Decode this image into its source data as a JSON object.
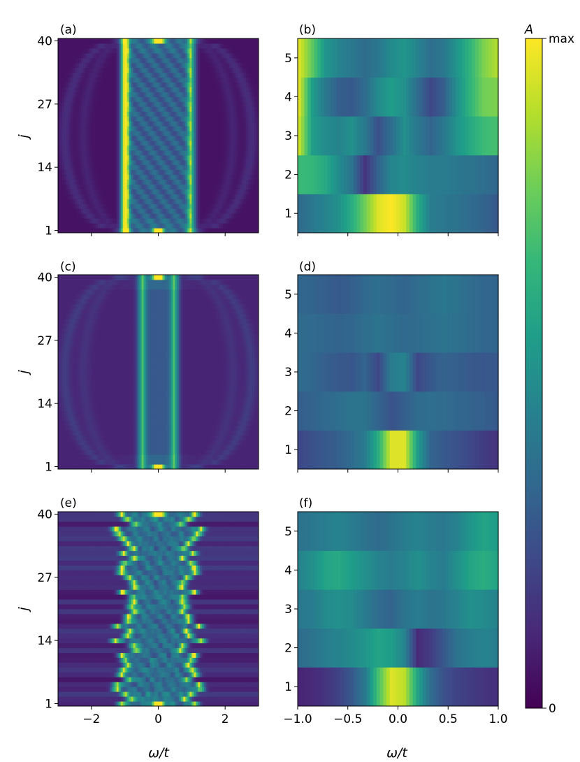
{
  "chart_data": [
    {
      "panel_label": "(a)",
      "type": "heatmap",
      "xlabel": "",
      "ylabel": "j",
      "xlim": [
        -3,
        3
      ],
      "ylim": [
        1,
        40
      ],
      "x_ticks": [
        -2,
        0,
        2
      ],
      "x_tick_labels_visible": false,
      "y_ticks": [
        1,
        14,
        27,
        40
      ],
      "y_tick_labels": [
        "1",
        "14",
        "27",
        "40"
      ],
      "colormap": "viridis",
      "rows": 40,
      "features": {
        "background": 0.05,
        "edge_ridge_x": [
          -1,
          1
        ],
        "center_peaks_at": [
          [
            0,
            1
          ],
          [
            0,
            40
          ]
        ],
        "left_ridge_intensity": 0.95,
        "right_ridge_intensity": 0.55,
        "interior_checker": 0.3,
        "arc_rings": true,
        "disorder": 0
      }
    },
    {
      "panel_label": "(b)",
      "type": "heatmap",
      "xlabel": "",
      "ylabel": "",
      "xlim": [
        -1,
        1
      ],
      "ylim": [
        0.5,
        5.5
      ],
      "x_ticks": [
        -1.0,
        -0.5,
        0.0,
        0.5,
        1.0
      ],
      "x_tick_labels_visible": false,
      "y_ticks": [
        1,
        2,
        3,
        4,
        5
      ],
      "y_tick_labels": [
        "1",
        "2",
        "3",
        "4",
        "5"
      ],
      "colormap": "viridis",
      "rows": [
        [
          0.35,
          0.4,
          0.45,
          0.5,
          0.62,
          0.78,
          0.95,
          1.0,
          0.92,
          0.62,
          0.42,
          0.4,
          0.38,
          0.35,
          0.32,
          0.28
        ],
        [
          0.68,
          0.66,
          0.6,
          0.48,
          0.38,
          0.15,
          0.32,
          0.46,
          0.48,
          0.45,
          0.42,
          0.42,
          0.4,
          0.38,
          0.36,
          0.33
        ],
        [
          0.92,
          0.55,
          0.48,
          0.45,
          0.5,
          0.4,
          0.25,
          0.36,
          0.5,
          0.4,
          0.32,
          0.4,
          0.52,
          0.6,
          0.68,
          0.7
        ],
        [
          0.95,
          0.55,
          0.4,
          0.3,
          0.28,
          0.35,
          0.48,
          0.55,
          0.5,
          0.35,
          0.22,
          0.3,
          0.5,
          0.65,
          0.78,
          0.8
        ],
        [
          0.95,
          0.75,
          0.52,
          0.45,
          0.4,
          0.35,
          0.4,
          0.48,
          0.52,
          0.45,
          0.36,
          0.4,
          0.52,
          0.65,
          0.8,
          0.88
        ]
      ]
    },
    {
      "panel_label": "(c)",
      "type": "heatmap",
      "xlabel": "",
      "ylabel": "j",
      "xlim": [
        -3,
        3
      ],
      "ylim": [
        1,
        40
      ],
      "x_ticks": [
        -2,
        0,
        2
      ],
      "x_tick_labels_visible": false,
      "y_ticks": [
        1,
        14,
        27,
        40
      ],
      "y_tick_labels": [
        "1",
        "14",
        "27",
        "40"
      ],
      "colormap": "viridis",
      "rows": 40,
      "features": {
        "background": 0.1,
        "edge_ridge_x": [
          -0.5,
          0.5
        ],
        "center_peaks_at": [
          [
            0,
            1
          ],
          [
            0,
            40
          ]
        ],
        "left_ridge_intensity": 0.45,
        "right_ridge_intensity": 0.45,
        "interior_checker": 0,
        "arc_rings": true,
        "disorder": 0
      }
    },
    {
      "panel_label": "(d)",
      "type": "heatmap",
      "xlabel": "",
      "ylabel": "",
      "xlim": [
        -1,
        1
      ],
      "ylim": [
        0.5,
        5.5
      ],
      "x_ticks": [
        -1.0,
        -0.5,
        0.0,
        0.5,
        1.0
      ],
      "x_tick_labels_visible": false,
      "y_ticks": [
        1,
        2,
        3,
        4,
        5
      ],
      "y_tick_labels": [
        "1",
        "2",
        "3",
        "4",
        "5"
      ],
      "colormap": "viridis",
      "rows": [
        [
          0.22,
          0.25,
          0.28,
          0.3,
          0.35,
          0.42,
          0.62,
          0.95,
          0.95,
          0.55,
          0.32,
          0.28,
          0.25,
          0.22,
          0.18,
          0.15
        ],
        [
          0.3,
          0.32,
          0.34,
          0.36,
          0.38,
          0.38,
          0.32,
          0.26,
          0.3,
          0.35,
          0.36,
          0.35,
          0.33,
          0.32,
          0.3,
          0.28
        ],
        [
          0.35,
          0.33,
          0.3,
          0.28,
          0.27,
          0.32,
          0.22,
          0.42,
          0.45,
          0.22,
          0.28,
          0.32,
          0.3,
          0.28,
          0.27,
          0.28
        ],
        [
          0.35,
          0.34,
          0.33,
          0.32,
          0.33,
          0.36,
          0.38,
          0.36,
          0.34,
          0.35,
          0.37,
          0.38,
          0.37,
          0.35,
          0.33,
          0.32
        ],
        [
          0.33,
          0.32,
          0.3,
          0.28,
          0.3,
          0.34,
          0.36,
          0.34,
          0.32,
          0.35,
          0.38,
          0.4,
          0.38,
          0.35,
          0.33,
          0.32
        ]
      ]
    },
    {
      "panel_label": "(e)",
      "type": "heatmap",
      "xlabel": "ω/t",
      "ylabel": "j",
      "xlim": [
        -3,
        3
      ],
      "ylim": [
        1,
        40
      ],
      "x_ticks": [
        -2,
        0,
        2
      ],
      "x_tick_labels": [
        "−2",
        "0",
        "2"
      ],
      "y_ticks": [
        1,
        14,
        27,
        40
      ],
      "y_tick_labels": [
        "1",
        "14",
        "27",
        "40"
      ],
      "colormap": "viridis",
      "rows": 40,
      "features": {
        "background": 0.12,
        "edge_ridge_x": [
          -1,
          1
        ],
        "center_peaks_at": [
          [
            0,
            1
          ],
          [
            0,
            40
          ]
        ],
        "left_ridge_intensity": 0.6,
        "right_ridge_intensity": 0.6,
        "interior_checker": 0.25,
        "arc_rings": false,
        "disorder": 0.35
      }
    },
    {
      "panel_label": "(f)",
      "type": "heatmap",
      "xlabel": "ω/t",
      "ylabel": "",
      "xlim": [
        -1,
        1
      ],
      "ylim": [
        0.5,
        5.5
      ],
      "x_ticks": [
        -1.0,
        -0.5,
        0.0,
        0.5,
        1.0
      ],
      "x_tick_labels": [
        "−1.0",
        "−0.5",
        "0.0",
        "0.5",
        "1.0"
      ],
      "y_ticks": [
        1,
        2,
        3,
        4,
        5
      ],
      "y_tick_labels": [
        "1",
        "2",
        "3",
        "4",
        "5"
      ],
      "colormap": "viridis",
      "rows": [
        [
          0.1,
          0.12,
          0.15,
          0.2,
          0.28,
          0.4,
          0.7,
          0.95,
          0.9,
          0.58,
          0.35,
          0.25,
          0.2,
          0.18,
          0.15,
          0.14
        ],
        [
          0.35,
          0.38,
          0.42,
          0.45,
          0.48,
          0.52,
          0.58,
          0.55,
          0.45,
          0.12,
          0.18,
          0.28,
          0.38,
          0.42,
          0.45,
          0.42
        ],
        [
          0.4,
          0.42,
          0.48,
          0.5,
          0.48,
          0.42,
          0.35,
          0.32,
          0.38,
          0.42,
          0.38,
          0.4,
          0.45,
          0.5,
          0.48,
          0.45
        ],
        [
          0.45,
          0.5,
          0.58,
          0.6,
          0.55,
          0.5,
          0.45,
          0.42,
          0.45,
          0.5,
          0.45,
          0.42,
          0.5,
          0.58,
          0.62,
          0.58
        ],
        [
          0.38,
          0.4,
          0.42,
          0.45,
          0.42,
          0.38,
          0.35,
          0.38,
          0.42,
          0.45,
          0.42,
          0.4,
          0.45,
          0.52,
          0.58,
          0.55
        ]
      ]
    }
  ],
  "colorbar": {
    "label": "A",
    "max_label": "max",
    "min_label": "0",
    "colormap": "viridis"
  },
  "colors": {
    "viridis_stops": [
      "#440154",
      "#482878",
      "#3e4989",
      "#31688e",
      "#26828e",
      "#1f9e89",
      "#35b779",
      "#6ece58",
      "#b5de2b",
      "#fde725"
    ]
  }
}
